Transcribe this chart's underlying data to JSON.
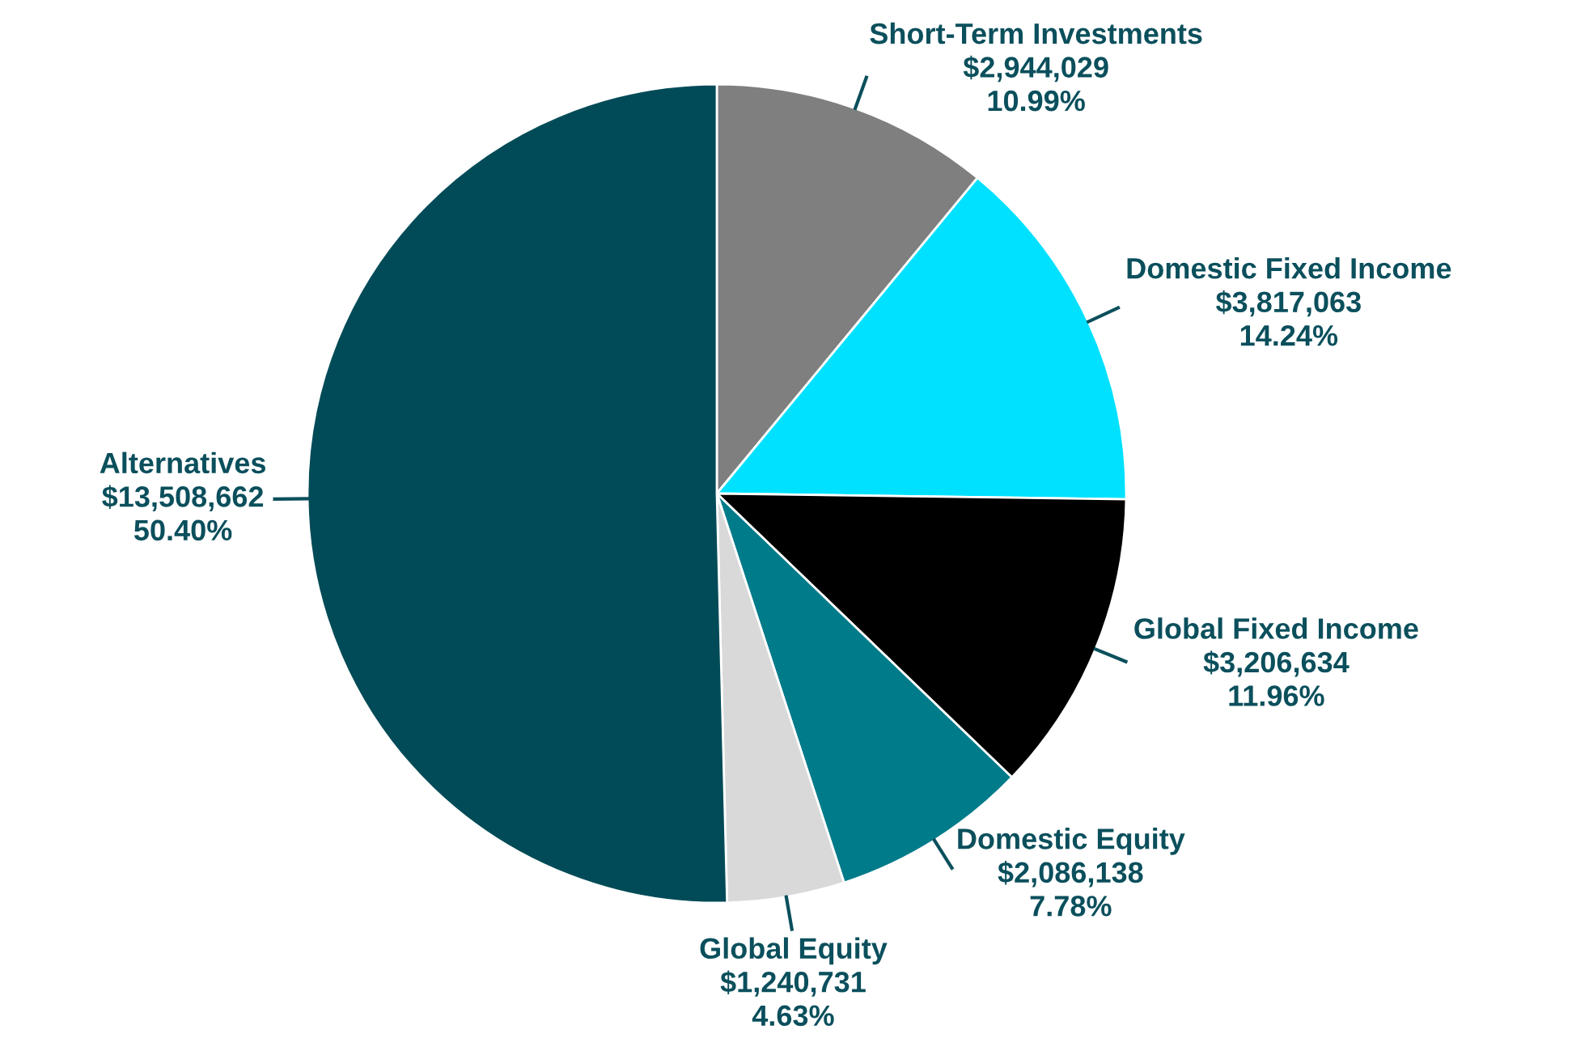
{
  "chart_data": {
    "type": "pie",
    "categories": [
      "Short-Term Investments",
      "Domestic Fixed Income",
      "Global Fixed Income",
      "Domestic Equity",
      "Global Equity",
      "Alternatives"
    ],
    "values": [
      2944029,
      3817063,
      3206634,
      2086138,
      1240731,
      13508662
    ],
    "colors": [
      "#7f7f7f",
      "#00e1ff",
      "#000000",
      "#007b8a",
      "#d9d9d9",
      "#004b57"
    ],
    "value_labels": [
      "$2,944,029\n10.99%",
      "$3,817,063\n14.24%",
      "$3,206,634\n11.96%",
      "$2,086,138\n7.78%",
      "$1,240,731\n4.63%",
      "$13,508,662\n50.40%"
    ]
  }
}
